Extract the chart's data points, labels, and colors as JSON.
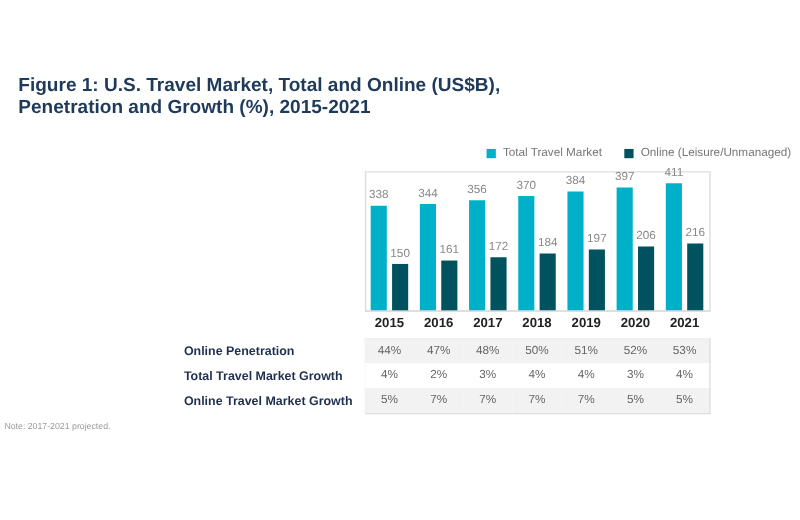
{
  "chart_data": [
    {
      "type": "bar",
      "title": "Figure 1: U.S. Travel Market, Total and Online (US$B),\nPenetration and Growth (%), 2015-2021",
      "categories": [
        "2015",
        "2016",
        "2017",
        "2018",
        "2019",
        "2020",
        "2021"
      ],
      "series": [
        {
          "name": "Total Travel Market",
          "color": "#00b0c8",
          "values": [
            338,
            344,
            356,
            370,
            384,
            397,
            411
          ]
        },
        {
          "name": "Online (Leisure/Unmanaged)",
          "color": "#00535e",
          "values": [
            150,
            161,
            172,
            184,
            197,
            206,
            216
          ]
        }
      ],
      "data_labels": true,
      "legend": "top right",
      "grid": false,
      "tick_labels": false
    },
    {
      "type": "heatmap",
      "categories": [
        "2015",
        "2016",
        "2017",
        "2018",
        "2019",
        "2020",
        "2021"
      ],
      "y_categories": [
        "Online Penetration",
        "Total Travel Market Growth",
        "Online Travel Market Growth"
      ],
      "cells": [
        [
          44,
          47,
          48,
          50,
          51,
          52,
          53
        ],
        [
          4,
          2,
          3,
          4,
          4,
          3,
          4
        ],
        [
          5,
          7,
          7,
          7,
          7,
          5,
          5
        ]
      ],
      "cell_labels": [
        [
          "44%",
          "47%",
          "48%",
          "50%",
          "51%",
          "52%",
          "53%"
        ],
        [
          "4%",
          "2%",
          "3%",
          "4%",
          "4%",
          "3%",
          "4%"
        ],
        [
          "5%",
          "7%",
          "7%",
          "7%",
          "7%",
          "5%",
          "5%"
        ]
      ],
      "annotations": [
        "Note: 2017-2021 projected."
      ]
    }
  ]
}
